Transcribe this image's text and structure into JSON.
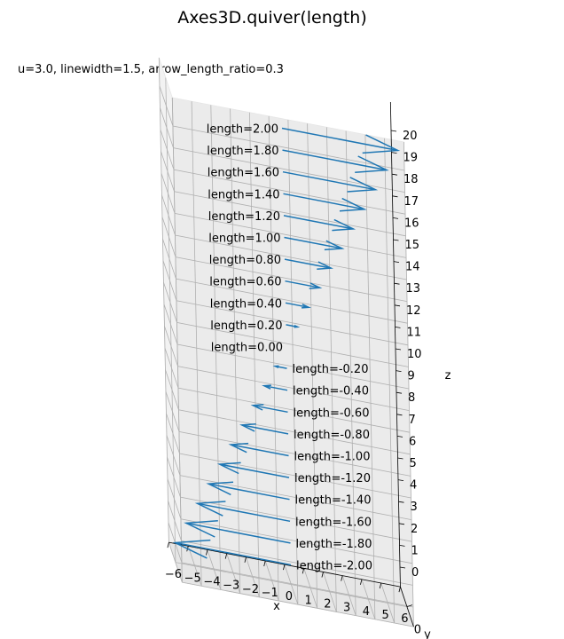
{
  "chart_data": {
    "type": "quiver3d",
    "title": "Axes3D.quiver(length)",
    "subtitle": "u=3.0, linewidth=1.5, arrow_length_ratio=0.3",
    "xlabel": "x",
    "ylabel": "y",
    "zlabel": "z",
    "x_ticks": [
      "−6",
      "−5",
      "−4",
      "−3",
      "−2",
      "−1",
      "0",
      "1",
      "2",
      "3",
      "4",
      "5",
      "6"
    ],
    "y_ticks": [
      "0"
    ],
    "z_ticks": [
      "0",
      "1",
      "2",
      "3",
      "4",
      "5",
      "6",
      "7",
      "8",
      "9",
      "10",
      "11",
      "12",
      "13",
      "14",
      "15",
      "16",
      "17",
      "18",
      "19",
      "20"
    ],
    "xlim": [
      -6,
      6
    ],
    "zlim": [
      0,
      20
    ],
    "u": 3.0,
    "linewidth": 1.5,
    "arrow_length_ratio": 0.3,
    "color": "#1f77b4",
    "arrows": [
      {
        "length": -2.0,
        "label": "length=-2.00",
        "z": 0
      },
      {
        "length": -1.8,
        "label": "length=-1.80",
        "z": 1
      },
      {
        "length": -1.6,
        "label": "length=-1.60",
        "z": 2
      },
      {
        "length": -1.4,
        "label": "length=-1.40",
        "z": 3
      },
      {
        "length": -1.2,
        "label": "length=-1.20",
        "z": 4
      },
      {
        "length": -1.0,
        "label": "length=-1.00",
        "z": 5
      },
      {
        "length": -0.8,
        "label": "length=-0.80",
        "z": 6
      },
      {
        "length": -0.6,
        "label": "length=-0.60",
        "z": 7
      },
      {
        "length": -0.4,
        "label": "length=-0.40",
        "z": 8
      },
      {
        "length": -0.2,
        "label": "length=-0.20",
        "z": 9
      },
      {
        "length": 0.0,
        "label": "length=0.00",
        "z": 10
      },
      {
        "length": 0.2,
        "label": "length=0.20",
        "z": 11
      },
      {
        "length": 0.4,
        "label": "length=0.40",
        "z": 12
      },
      {
        "length": 0.6,
        "label": "length=0.60",
        "z": 13
      },
      {
        "length": 0.8,
        "label": "length=0.80",
        "z": 14
      },
      {
        "length": 1.0,
        "label": "length=1.00",
        "z": 15
      },
      {
        "length": 1.2,
        "label": "length=1.20",
        "z": 16
      },
      {
        "length": 1.4,
        "label": "length=1.40",
        "z": 17
      },
      {
        "length": 1.6,
        "label": "length=1.60",
        "z": 18
      },
      {
        "length": 1.8,
        "label": "length=1.80",
        "z": 19
      },
      {
        "length": 2.0,
        "label": "length=2.00",
        "z": 20
      }
    ]
  }
}
